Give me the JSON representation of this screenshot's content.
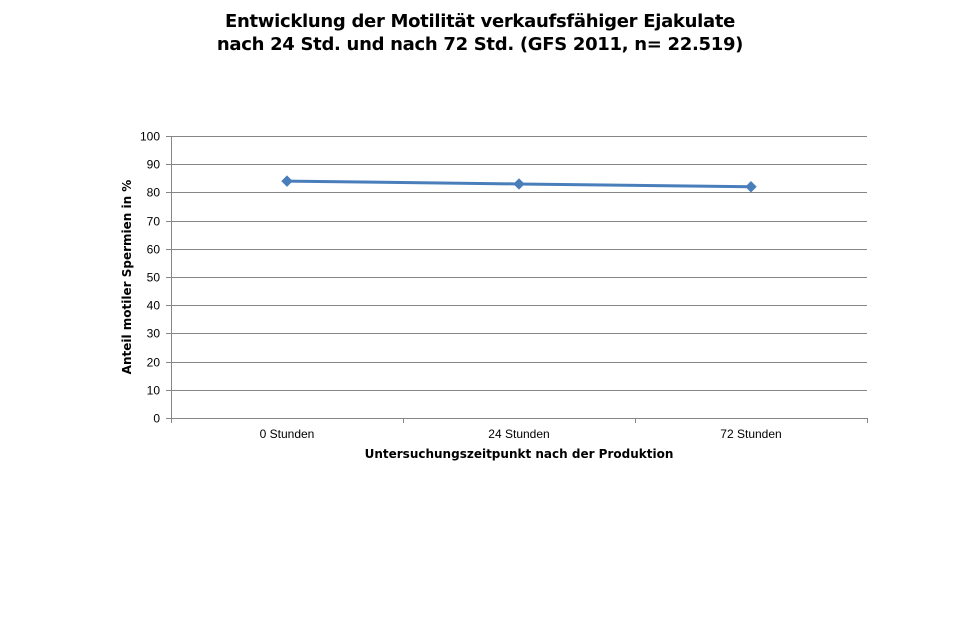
{
  "chart_data": {
    "type": "line",
    "title_lines": [
      "Entwicklung der Motilität verkaufsfähiger Ejakulate",
      "nach 24 Std. und nach 72 Std. (GFS 2011, n= 22.519)"
    ],
    "categories": [
      "0 Stunden",
      "24 Stunden",
      "72 Stunden"
    ],
    "series": [
      {
        "values": [
          84,
          83,
          82
        ]
      }
    ],
    "xlabel": "Untersuchungszeitpunkt nach der Produktion",
    "ylabel": "Anteil motiler Spermien in %",
    "ylim": [
      0,
      100
    ],
    "yticks": [
      0,
      10,
      20,
      30,
      40,
      50,
      60,
      70,
      80,
      90,
      100
    ],
    "grid": true,
    "legend": "none",
    "series_color": "#4a7ebb",
    "grid_color": "#868686"
  }
}
